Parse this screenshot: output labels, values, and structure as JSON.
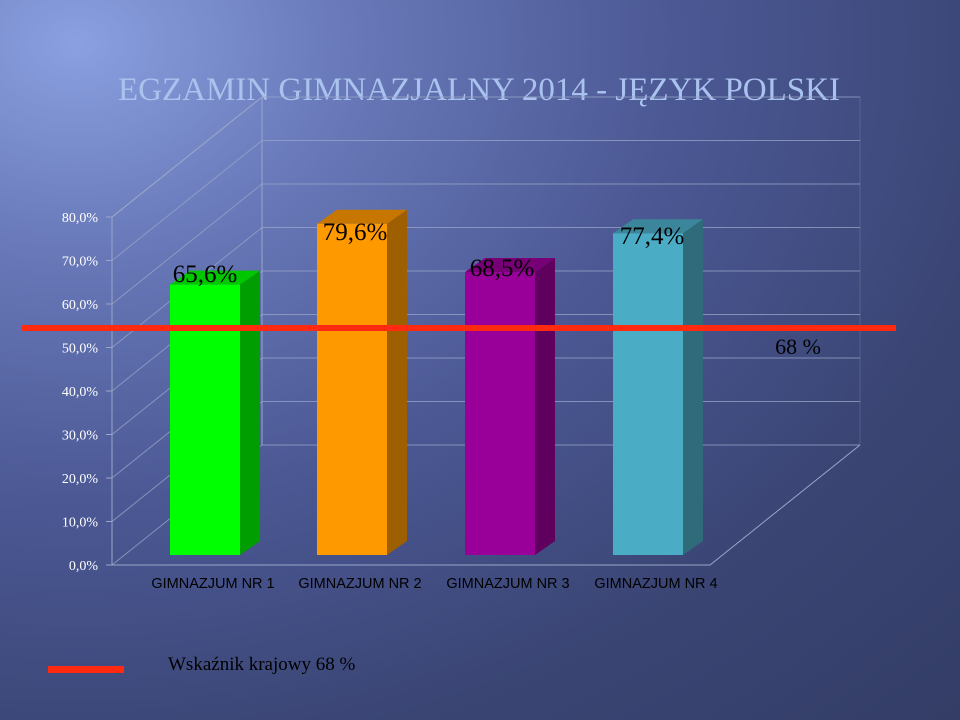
{
  "page": {
    "title": "EGZAMIN GIMNAZJALNY 2014 - JĘZYK POLSKI"
  },
  "chart_data": {
    "type": "bar",
    "categories": [
      "GIMNAZJUM NR 1",
      "GIMNAZJUM NR 2",
      "GIMNAZJUM NR 3",
      "GIMNAZJUM NR 4"
    ],
    "values": [
      65.6,
      79.6,
      68.5,
      77.4
    ],
    "value_labels": [
      "65,6%",
      "79,6%",
      "68,5%",
      "77,4%"
    ],
    "bar_colors": [
      "#00ff00",
      "#ff9900",
      "#990099",
      "#4bacc6"
    ],
    "y_ticks": [
      "0,0%",
      "10,0%",
      "20,0%",
      "30,0%",
      "40,0%",
      "50,0%",
      "60,0%",
      "70,0%",
      "80,0%"
    ],
    "ylim": [
      0,
      80
    ],
    "grid": true,
    "reference_line": {
      "value": 68,
      "label": "68 %",
      "color": "#ff2a10"
    },
    "legend": {
      "label": "Wskaźnik krajowy 68 %",
      "placement": "bottom-left"
    }
  }
}
